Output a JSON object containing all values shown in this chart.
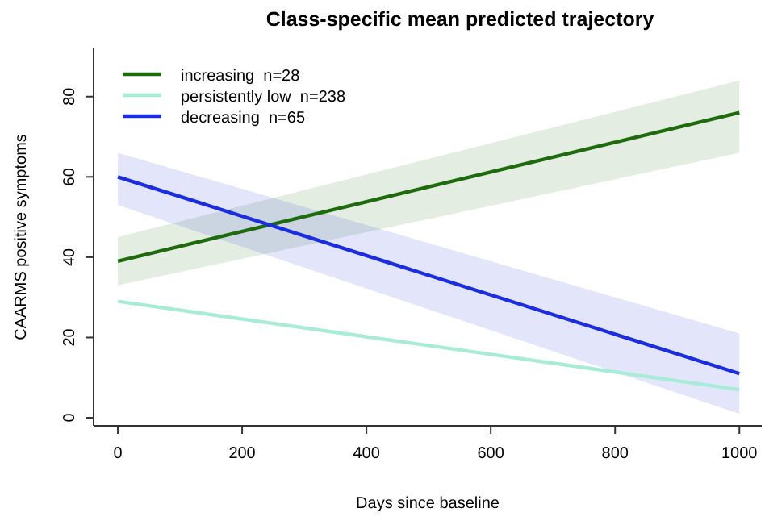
{
  "chart_data": {
    "type": "line",
    "title": "Class-specific mean predicted trajectory",
    "xlabel": "Days since baseline",
    "ylabel": "CAARMS positive symptoms",
    "x": [
      0,
      1000
    ],
    "xlim": [
      -39,
      1036
    ],
    "ylim": [
      -2,
      92
    ],
    "xticks": [
      0,
      200,
      400,
      600,
      800,
      1000
    ],
    "yticks": [
      0,
      20,
      40,
      60,
      80
    ],
    "legend": "top left",
    "grid": false,
    "line_style": "solid",
    "marker": "none",
    "series": [
      {
        "name": "increasing  n=28",
        "color": "#1e6b0e",
        "values": [
          39,
          76
        ],
        "lower": [
          33,
          66
        ],
        "upper": [
          45,
          84
        ]
      },
      {
        "name": "persistently low  n=238",
        "color": "#a8ecd8",
        "values": [
          29,
          7
        ]
      },
      {
        "name": "decreasing  n=65",
        "color": "#1a2de0",
        "values": [
          60,
          11
        ],
        "lower": [
          53,
          1
        ],
        "upper": [
          66,
          21
        ]
      }
    ]
  }
}
